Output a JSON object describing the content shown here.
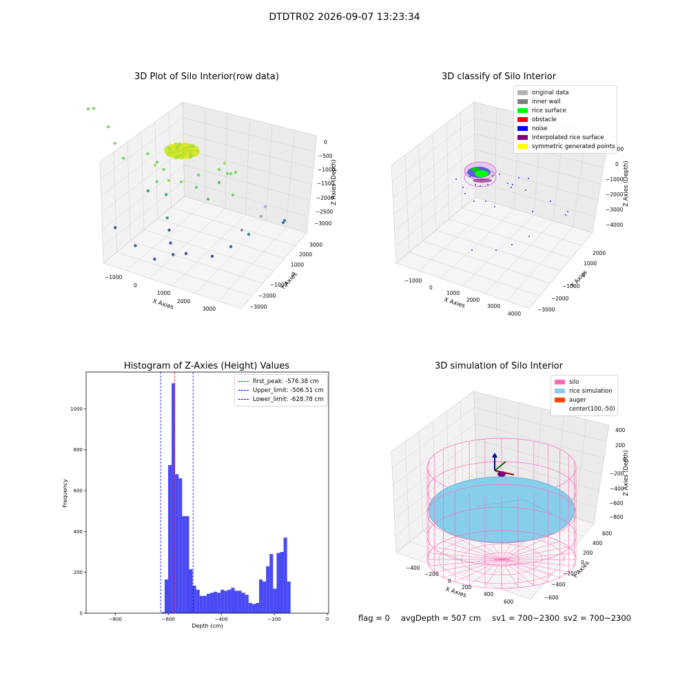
{
  "figure": {
    "suptitle": "DTDTR02 2026-09-07 13:23:34",
    "footer": {
      "flag": "flag = 0",
      "avg_depth": "avgDepth = 507 cm",
      "sv1": "sv1 = 700~2300",
      "sv2": "sv2 = 700~2300"
    }
  },
  "colors": {
    "hist_bar": "#4a4af5",
    "first_peak": "#ff0000",
    "limits": "#0000dd",
    "original_data": "#b2b2b2",
    "inner_wall": "#808080",
    "rice_surface": "#00ff00",
    "obstacle": "#ff0000",
    "noise": "#0000ff",
    "interpolated_rice_surface": "#800080",
    "symmetric_generated_points": "#ffff00",
    "silo": "#ff69b4",
    "rice_simulation": "#87ceeb",
    "auger": "#ff4500"
  },
  "chart_data": [
    {
      "type": "scatter",
      "id": "raw",
      "title": "3D Plot of Silo Interior(row data)",
      "xlabel": "X Axies",
      "ylabel": "Y Axies",
      "zlabel": "Z Axies (Depth)",
      "x_ticks": [
        "−1000",
        "0",
        "1000",
        "2000",
        "3000"
      ],
      "y_ticks": [
        "−3000",
        "−2000",
        "−1000",
        "0",
        "1000",
        "2000",
        "3000"
      ],
      "z_ticks": [
        "−3000",
        "−2500",
        "−2000",
        "−1500",
        "−1000",
        "−500",
        "0"
      ],
      "points": [
        [
          3000,
          500,
          -1500
        ],
        [
          3200,
          600,
          -1600
        ],
        [
          2800,
          900,
          -1300
        ],
        [
          3100,
          1200,
          -1800
        ],
        [
          3300,
          800,
          -2100
        ],
        [
          2900,
          1500,
          -2000
        ],
        [
          3600,
          2200,
          -2600
        ],
        [
          3700,
          2600,
          -2800
        ],
        [
          3500,
          1900,
          -2400
        ],
        [
          1500,
          -400,
          -1200
        ],
        [
          1700,
          -300,
          -1500
        ],
        [
          2000,
          100,
          -1700
        ],
        [
          1000,
          -1000,
          -1000
        ],
        [
          800,
          -1300,
          -1100
        ],
        [
          3800,
          2800,
          -3000
        ],
        [
          3300,
          2900,
          -3200
        ],
        [
          2700,
          2500,
          -3100
        ],
        [
          2000,
          1600,
          -3000
        ]
      ]
    },
    {
      "type": "scatter",
      "id": "classify",
      "title": "3D classify of Silo Interior",
      "xlabel": "X Axies",
      "ylabel": "Y Axies",
      "zlabel": "Z Axies (Depth)",
      "x_ticks": [
        "−1000",
        "0",
        "1000",
        "2000",
        "3000",
        "4000"
      ],
      "y_ticks": [
        "−3000",
        "−2000",
        "−1000",
        "0",
        "1000",
        "2000"
      ],
      "z_ticks": [
        "−4000",
        "−3000",
        "−2000",
        "−1000",
        "0",
        "1000"
      ],
      "legend": [
        "original data",
        "inner wall",
        "rice surface",
        "obstacle",
        "noise",
        "interpolated rice surface",
        "symmetric generated points"
      ]
    },
    {
      "type": "bar",
      "id": "histogram",
      "title": "Histogram of Z-Axies (Height) Values",
      "xlabel": "Depth (cm)",
      "ylabel": "Frequency",
      "xlim": [
        -910,
        5
      ],
      "ylim": [
        0,
        1180
      ],
      "x_ticks": [
        -800,
        -600,
        -400,
        -200,
        0
      ],
      "x_tick_labels": [
        "−800",
        "−600",
        "−400",
        "−200",
        "0"
      ],
      "y_ticks": [
        0,
        200,
        400,
        600,
        800,
        1000
      ],
      "bin_start": -627,
      "bin_width": 13.2,
      "values": [
        5,
        165,
        725,
        1125,
        680,
        660,
        475,
        475,
        215,
        135,
        115,
        85,
        85,
        95,
        100,
        105,
        100,
        115,
        110,
        115,
        125,
        110,
        110,
        100,
        90,
        50,
        45,
        50,
        165,
        155,
        230,
        290,
        120,
        295,
        300,
        370,
        155
      ],
      "vlines": [
        {
          "value": -576.38,
          "label": "first_peak: -576.38 cm",
          "color_key": "first_peak"
        },
        {
          "value": -506.51,
          "label": "Upper_limit: -506.51 cm",
          "color_key": "limits"
        },
        {
          "value": -628.78,
          "label": "Lower_limit: -628.78 cm",
          "color_key": "limits"
        }
      ]
    },
    {
      "type": "scatter",
      "id": "simulation",
      "title": "3D simulation of Silo Interior",
      "xlabel": "X Axies",
      "ylabel": "Y Axies",
      "zlabel": "Z Axies (Depth)",
      "x_ticks": [
        "−400",
        "−200",
        "0",
        "200",
        "400",
        "600"
      ],
      "y_ticks": [
        "−600",
        "−400",
        "−200",
        "0",
        "200",
        "400",
        "600"
      ],
      "z_ticks": [
        "−800",
        "−600",
        "−400",
        "−200",
        "0",
        "200",
        "400"
      ],
      "legend": [
        "silo",
        "rice simulation",
        "auger",
        "center(100,-50)"
      ]
    }
  ]
}
